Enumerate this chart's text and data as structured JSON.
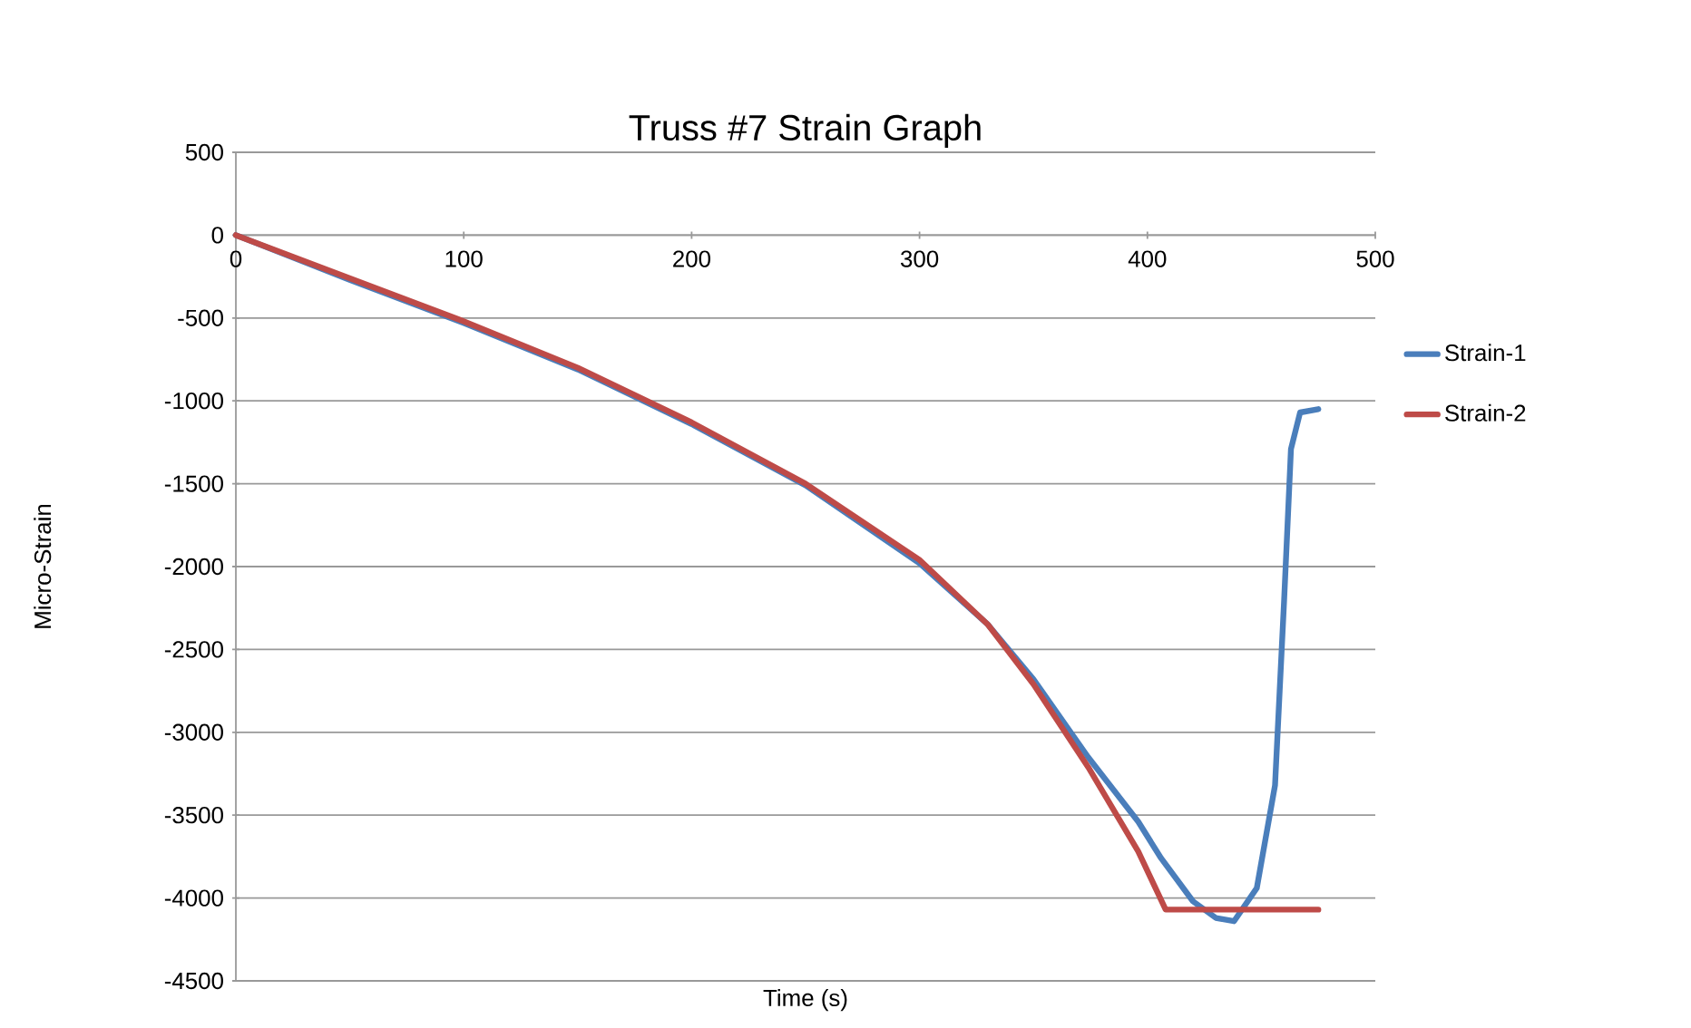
{
  "chart_data": {
    "type": "line",
    "title": "Truss #7 Strain Graph",
    "xlabel": "Time (s)",
    "ylabel": "Micro-Strain",
    "xlim": [
      0,
      500
    ],
    "xticks": [
      0,
      100,
      200,
      300,
      400,
      500
    ],
    "ylim": [
      -4500,
      500
    ],
    "yticks": [
      -4500,
      -4000,
      -3500,
      -3000,
      -2500,
      -2000,
      -1500,
      -1000,
      -500,
      0,
      500
    ],
    "grid": "y",
    "legend": "right",
    "marker": "none",
    "line_style": "solid",
    "series": [
      {
        "name": "Strain-1",
        "color": "#4a7ebb",
        "x": [
          0,
          50,
          100,
          150,
          200,
          250,
          300,
          330,
          350,
          374,
          396,
          406,
          420,
          430,
          438,
          448,
          456,
          460,
          463,
          467,
          475
        ],
        "values": [
          0,
          -270,
          -530,
          -810,
          -1140,
          -1510,
          -1980,
          -2350,
          -2680,
          -3150,
          -3540,
          -3760,
          -4020,
          -4120,
          -4140,
          -3940,
          -3320,
          -2200,
          -1290,
          -1070,
          -1050
        ]
      },
      {
        "name": "Strain-2",
        "color": "#be4b48",
        "x": [
          0,
          50,
          100,
          150,
          200,
          250,
          300,
          330,
          350,
          374,
          396,
          408,
          475
        ],
        "values": [
          0,
          -260,
          -520,
          -800,
          -1130,
          -1500,
          -1960,
          -2350,
          -2710,
          -3210,
          -3720,
          -4070,
          -4070
        ]
      }
    ]
  }
}
